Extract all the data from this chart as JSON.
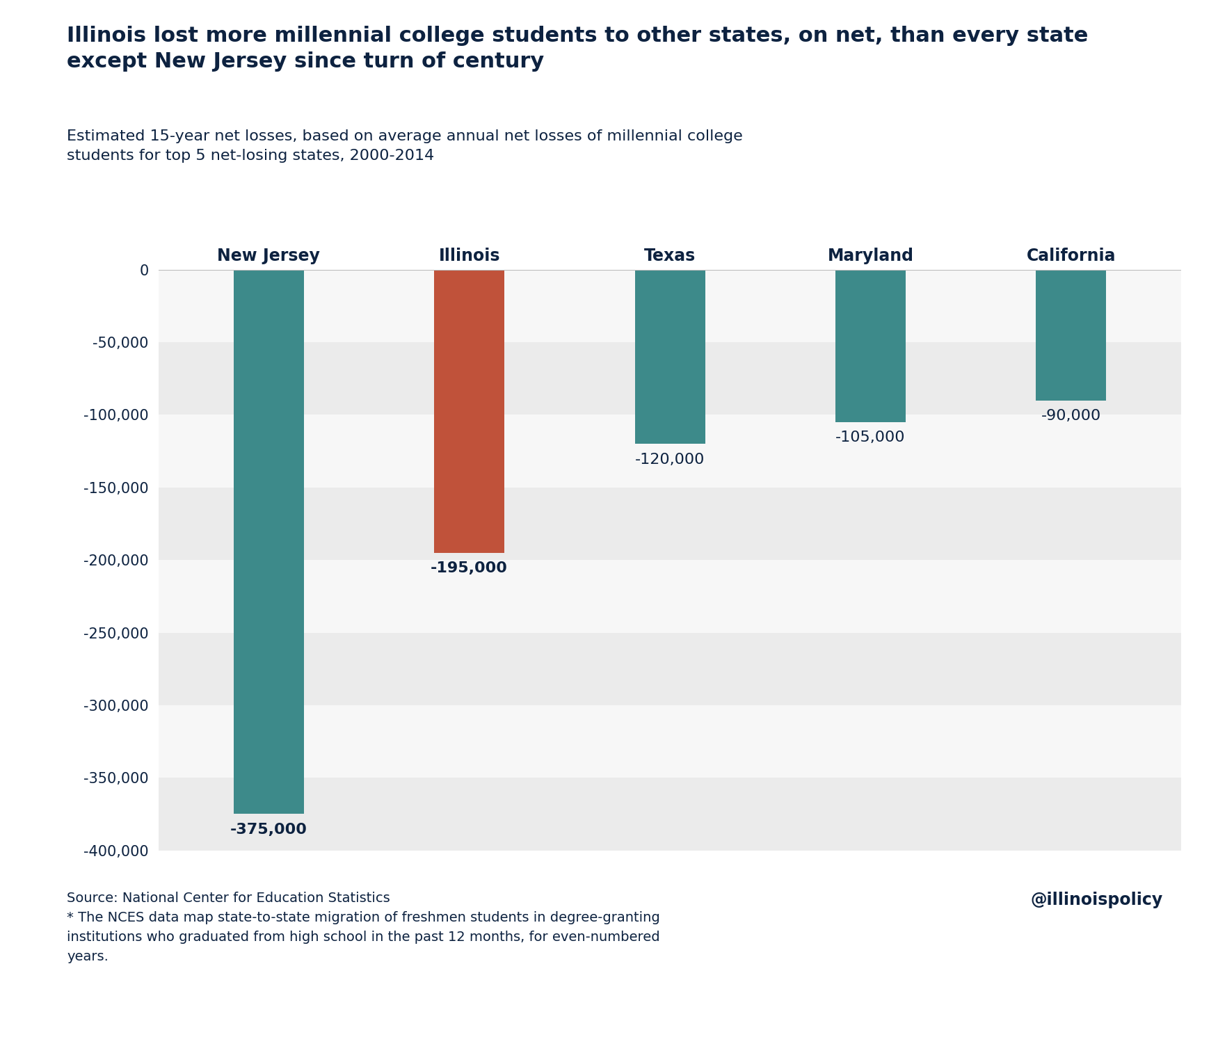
{
  "title_line1": "Illinois lost more millennial college students to other states, on net, than every state",
  "title_line2": "except New Jersey since turn of century",
  "subtitle": "Estimated 15-year net losses, based on average annual net losses of millennial college\nstudents for top 5 net-losing states, 2000-2014",
  "categories": [
    "New Jersey",
    "Illinois",
    "Texas",
    "Maryland",
    "California"
  ],
  "values": [
    -375000,
    -195000,
    -120000,
    -105000,
    -90000
  ],
  "bar_colors": [
    "#3d8a8a",
    "#c0523a",
    "#3d8a8a",
    "#3d8a8a",
    "#3d8a8a"
  ],
  "label_values": [
    "-375,000",
    "-195,000",
    "-120,000",
    "-105,000",
    "-90,000"
  ],
  "label_bold": [
    true,
    true,
    false,
    false,
    false
  ],
  "ylim": [
    -400000,
    0
  ],
  "yticks": [
    0,
    -50000,
    -100000,
    -150000,
    -200000,
    -250000,
    -300000,
    -350000,
    -400000
  ],
  "ytick_labels": [
    "0",
    "-50,000",
    "-100,000",
    "-150,000",
    "-200,000",
    "-250,000",
    "-300,000",
    "-350,000",
    "-400,000"
  ],
  "bg_color": "#ffffff",
  "band_color_light": "#ebebeb",
  "band_color_white": "#f7f7f7",
  "title_color": "#0d2240",
  "bar_label_color": "#0d2240",
  "axis_label_color": "#0d2240",
  "source_text": "Source: National Center for Education Statistics\n* The NCES data map state-to-state migration of freshmen students in degree-granting\ninstitutions who graduated from high school in the past 12 months, for even-numbered\nyears.",
  "watermark": "@illinoispolicy",
  "title_fontsize": 22,
  "subtitle_fontsize": 16,
  "category_fontsize": 17,
  "bar_label_fontsize": 16,
  "ytick_fontsize": 15,
  "source_fontsize": 14,
  "watermark_fontsize": 17
}
